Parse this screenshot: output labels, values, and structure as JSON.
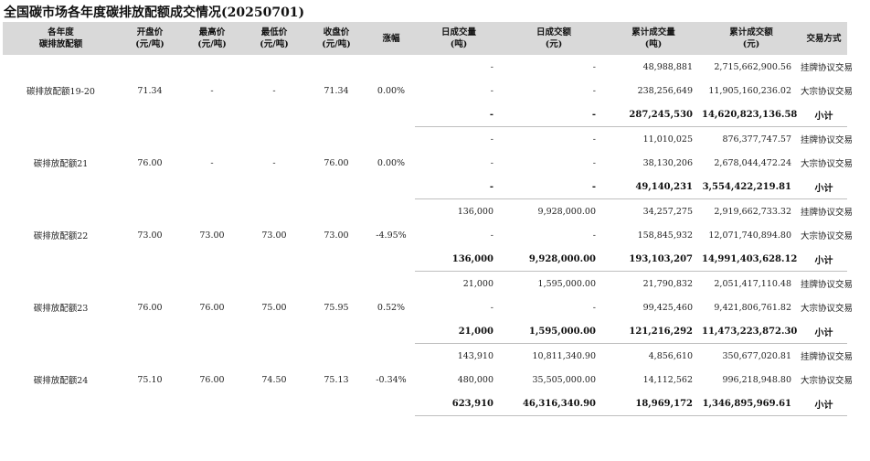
{
  "title": "全国碳市场各年度碳排放配额成交情况(20250701)",
  "headers": {
    "product": [
      "各年度",
      "碳排放配额"
    ],
    "open": [
      "开盘价",
      "(元/吨)"
    ],
    "high": [
      "最高价",
      "(元/吨)"
    ],
    "low": [
      "最低价",
      "(元/吨)"
    ],
    "close": [
      "收盘价",
      "(元/吨)"
    ],
    "change": [
      "涨幅",
      ""
    ],
    "daily_volume": [
      "日成交量",
      "(吨)"
    ],
    "daily_amount": [
      "日成交额",
      "(元)"
    ],
    "cum_volume": [
      "累计成交量",
      "(吨)"
    ],
    "cum_amount": [
      "累计成交额",
      "(元)"
    ],
    "method": [
      "交易方式",
      ""
    ]
  },
  "groups": [
    {
      "product": "碳排放配额19-20",
      "open": "71.34",
      "high": "-",
      "low": "-",
      "close": "71.34",
      "change": "0.00%",
      "rows": [
        {
          "daily_volume": "-",
          "daily_amount": "-",
          "cum_volume": "48,988,881",
          "cum_amount": "2,715,662,900.56",
          "method": "挂牌协议交易"
        },
        {
          "daily_volume": "-",
          "daily_amount": "-",
          "cum_volume": "238,256,649",
          "cum_amount": "11,905,160,236.02",
          "method": "大宗协议交易"
        },
        {
          "daily_volume": "-",
          "daily_amount": "-",
          "cum_volume": "287,245,530",
          "cum_amount": "14,620,823,136.58",
          "method": "小计"
        }
      ]
    },
    {
      "product": "碳排放配额21",
      "open": "76.00",
      "high": "-",
      "low": "-",
      "close": "76.00",
      "change": "0.00%",
      "rows": [
        {
          "daily_volume": "-",
          "daily_amount": "-",
          "cum_volume": "11,010,025",
          "cum_amount": "876,377,747.57",
          "method": "挂牌协议交易"
        },
        {
          "daily_volume": "-",
          "daily_amount": "-",
          "cum_volume": "38,130,206",
          "cum_amount": "2,678,044,472.24",
          "method": "大宗协议交易"
        },
        {
          "daily_volume": "-",
          "daily_amount": "-",
          "cum_volume": "49,140,231",
          "cum_amount": "3,554,422,219.81",
          "method": "小计"
        }
      ]
    },
    {
      "product": "碳排放配额22",
      "open": "73.00",
      "high": "73.00",
      "low": "73.00",
      "close": "73.00",
      "change": "-4.95%",
      "rows": [
        {
          "daily_volume": "136,000",
          "daily_amount": "9,928,000.00",
          "cum_volume": "34,257,275",
          "cum_amount": "2,919,662,733.32",
          "method": "挂牌协议交易"
        },
        {
          "daily_volume": "-",
          "daily_amount": "-",
          "cum_volume": "158,845,932",
          "cum_amount": "12,071,740,894.80",
          "method": "大宗协议交易"
        },
        {
          "daily_volume": "136,000",
          "daily_amount": "9,928,000.00",
          "cum_volume": "193,103,207",
          "cum_amount": "14,991,403,628.12",
          "method": "小计"
        }
      ]
    },
    {
      "product": "碳排放配额23",
      "open": "76.00",
      "high": "76.00",
      "low": "75.00",
      "close": "75.95",
      "change": "0.52%",
      "rows": [
        {
          "daily_volume": "21,000",
          "daily_amount": "1,595,000.00",
          "cum_volume": "21,790,832",
          "cum_amount": "2,051,417,110.48",
          "method": "挂牌协议交易"
        },
        {
          "daily_volume": "-",
          "daily_amount": "-",
          "cum_volume": "99,425,460",
          "cum_amount": "9,421,806,761.82",
          "method": "大宗协议交易"
        },
        {
          "daily_volume": "21,000",
          "daily_amount": "1,595,000.00",
          "cum_volume": "121,216,292",
          "cum_amount": "11,473,223,872.30",
          "method": "小计"
        }
      ]
    },
    {
      "product": "碳排放配额24",
      "open": "75.10",
      "high": "76.00",
      "low": "74.50",
      "close": "75.13",
      "change": "-0.34%",
      "rows": [
        {
          "daily_volume": "143,910",
          "daily_amount": "10,811,340.90",
          "cum_volume": "4,856,610",
          "cum_amount": "350,677,020.81",
          "method": "挂牌协议交易"
        },
        {
          "daily_volume": "480,000",
          "daily_amount": "35,505,000.00",
          "cum_volume": "14,112,562",
          "cum_amount": "996,218,948.80",
          "method": "大宗协议交易"
        },
        {
          "daily_volume": "623,910",
          "daily_amount": "46,316,340.90",
          "cum_volume": "18,969,172",
          "cum_amount": "1,346,895,969.61",
          "method": "小计"
        }
      ]
    }
  ]
}
